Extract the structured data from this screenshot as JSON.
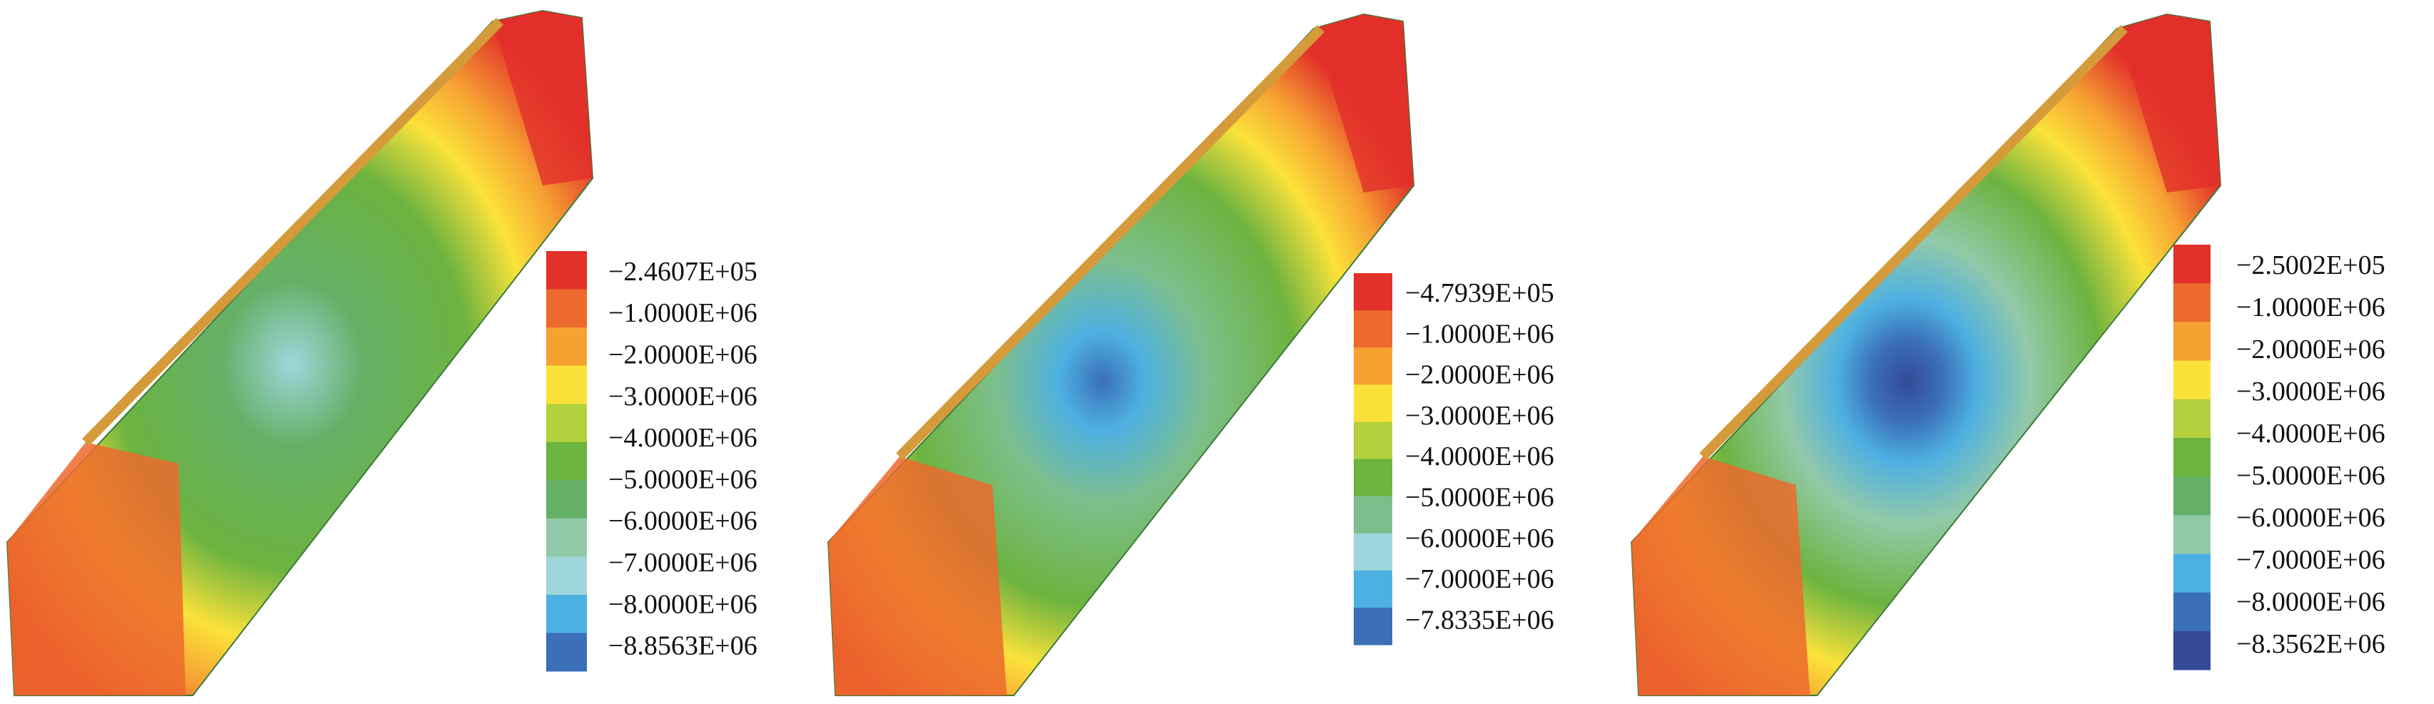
{
  "panels": [
    {
      "legend": {
        "labels": [
          "−2.4607E+05",
          "−1.0000E+06",
          "−2.0000E+06",
          "−3.0000E+06",
          "−4.0000E+06",
          "−5.0000E+06",
          "−6.0000E+06",
          "−7.0000E+06",
          "−8.0000E+06",
          "−8.8563E+06"
        ],
        "colors": [
          "#e2302a",
          "#ec6a2d",
          "#f6a232",
          "#fbe23a",
          "#b3d13c",
          "#6cb33f",
          "#64b067",
          "#92c9a8",
          "#9fd6db",
          "#4db0e2",
          "#3b6fb8"
        ]
      }
    },
    {
      "legend": {
        "labels": [
          "−4.7939E+05",
          "−1.0000E+06",
          "−2.0000E+06",
          "−3.0000E+06",
          "−4.0000E+06",
          "−5.0000E+06",
          "−6.0000E+06",
          "−7.0000E+06",
          "−7.8335E+06"
        ],
        "colors": [
          "#e2302a",
          "#ec6a2d",
          "#f6a232",
          "#fbe23a",
          "#b3d13c",
          "#6cb33f",
          "#7dbf8c",
          "#9fd6db",
          "#4db0e2",
          "#3b6fb8"
        ]
      }
    },
    {
      "legend": {
        "labels": [
          "−2.5002E+05",
          "−1.0000E+06",
          "−2.0000E+06",
          "−3.0000E+06",
          "−4.0000E+06",
          "−5.0000E+06",
          "−6.0000E+06",
          "−7.0000E+06",
          "−8.0000E+06",
          "−8.3562E+06"
        ],
        "colors": [
          "#e2302a",
          "#ec6a2d",
          "#f6a232",
          "#fbe23a",
          "#b3d13c",
          "#6cb33f",
          "#64b067",
          "#92c9a8",
          "#4db0e2",
          "#3b6fb8",
          "#344a98"
        ]
      }
    }
  ]
}
